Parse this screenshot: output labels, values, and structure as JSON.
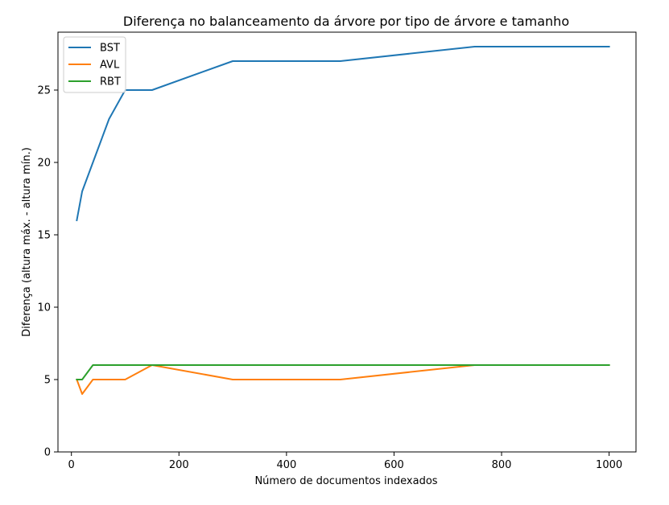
{
  "chart_data": {
    "type": "line",
    "title": "Diferença no balanceamento da árvore por tipo de árvore e tamanho",
    "xlabel": "Número de documentos indexados",
    "ylabel": "Diferença (altura máx. - altura mín.)",
    "xlim": [
      -25,
      1050
    ],
    "ylim": [
      0,
      29
    ],
    "xticks": [
      0,
      200,
      400,
      600,
      800,
      1000
    ],
    "yticks": [
      0,
      5,
      10,
      15,
      20,
      25
    ],
    "grid": false,
    "legend_position": "top-left",
    "series": [
      {
        "name": "BST",
        "color": "#1f77b4",
        "x": [
          10,
          20,
          40,
          70,
          100,
          150,
          300,
          500,
          750,
          1000
        ],
        "y": [
          16,
          18,
          20,
          23,
          25,
          25,
          27,
          27,
          28,
          28
        ]
      },
      {
        "name": "AVL",
        "color": "#ff7f0e",
        "x": [
          10,
          20,
          40,
          70,
          100,
          150,
          300,
          500,
          750,
          1000
        ],
        "y": [
          5,
          4,
          5,
          5,
          5,
          6,
          5,
          5,
          6,
          6
        ]
      },
      {
        "name": "RBT",
        "color": "#2ca02c",
        "x": [
          10,
          20,
          40,
          70,
          100,
          150,
          300,
          500,
          750,
          1000
        ],
        "y": [
          5,
          5,
          6,
          6,
          6,
          6,
          6,
          6,
          6,
          6
        ]
      }
    ]
  }
}
